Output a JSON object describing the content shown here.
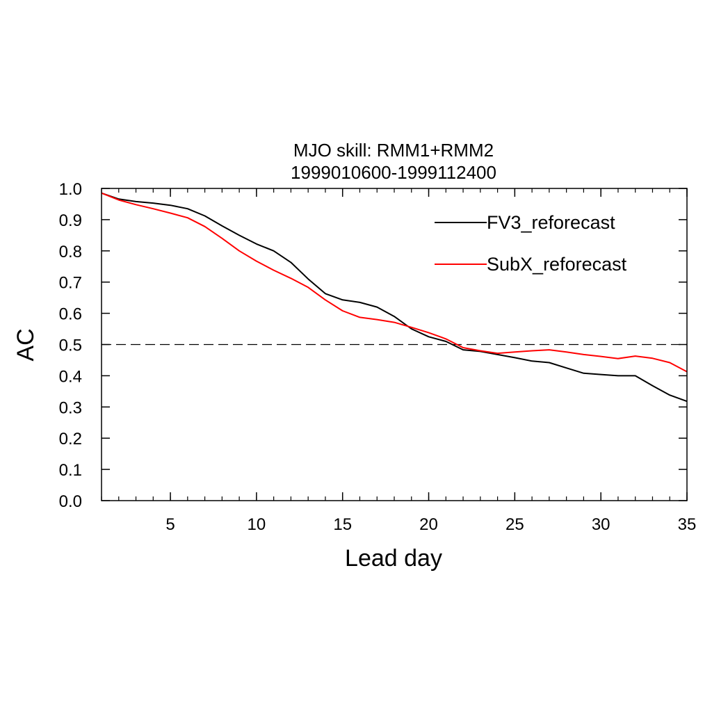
{
  "chart_data": {
    "type": "line",
    "title": "MJO skill: RMM1+RMM2",
    "subtitle": "1999010600-1999112400",
    "xlabel": "Lead day",
    "ylabel": "AC",
    "xlim": [
      1,
      35
    ],
    "ylim": [
      0.0,
      1.0
    ],
    "xticks": [
      5,
      10,
      15,
      20,
      25,
      30,
      35
    ],
    "yticks": [
      "0.0",
      "0.1",
      "0.2",
      "0.3",
      "0.4",
      "0.5",
      "0.6",
      "0.7",
      "0.8",
      "0.9",
      "1.0"
    ],
    "grid": false,
    "legend_position": "top-right",
    "reference_line": {
      "y": 0.5,
      "style": "dashed",
      "color": "#000000"
    },
    "x": [
      1,
      2,
      3,
      4,
      5,
      6,
      7,
      8,
      9,
      10,
      11,
      12,
      13,
      14,
      15,
      16,
      17,
      18,
      19,
      20,
      21,
      22,
      23,
      24,
      25,
      26,
      27,
      28,
      29,
      30,
      31,
      32,
      33,
      34,
      35
    ],
    "series": [
      {
        "name": "FV3_reforecast",
        "color": "#000000",
        "values": [
          0.985,
          0.966,
          0.958,
          0.953,
          0.946,
          0.935,
          0.912,
          0.88,
          0.85,
          0.822,
          0.8,
          0.763,
          0.71,
          0.663,
          0.643,
          0.635,
          0.62,
          0.59,
          0.55,
          0.525,
          0.51,
          0.483,
          0.478,
          0.468,
          0.458,
          0.447,
          0.442,
          0.425,
          0.408,
          0.404,
          0.4,
          0.4,
          0.368,
          0.338,
          0.318
        ]
      },
      {
        "name": "SubX_reforecast",
        "color": "#ff0000",
        "values": [
          0.985,
          0.963,
          0.948,
          0.935,
          0.921,
          0.906,
          0.878,
          0.84,
          0.8,
          0.767,
          0.738,
          0.712,
          0.683,
          0.643,
          0.608,
          0.587,
          0.58,
          0.571,
          0.555,
          0.538,
          0.518,
          0.49,
          0.48,
          0.472,
          0.476,
          0.48,
          0.483,
          0.476,
          0.468,
          0.462,
          0.455,
          0.463,
          0.456,
          0.442,
          0.413
        ]
      }
    ]
  }
}
